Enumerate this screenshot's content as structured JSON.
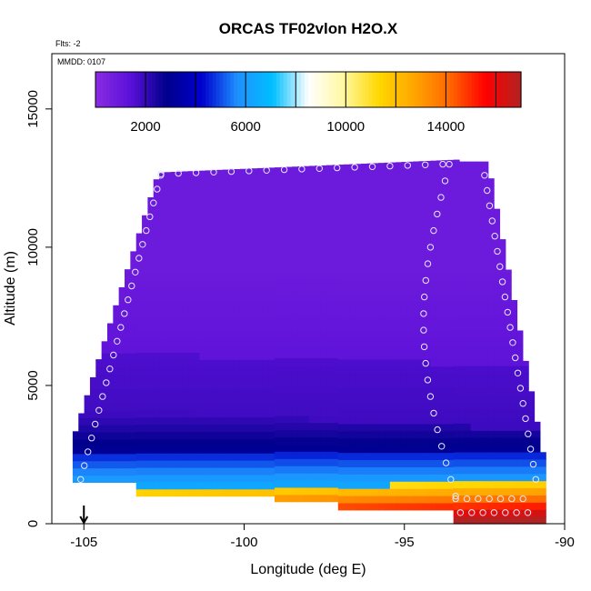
{
  "chart_data": {
    "type": "heatmap",
    "title": "ORCAS TF02vlon H2O.X",
    "subtitle": "Flts: -2",
    "annotation": "MMDD: 0107",
    "xlabel": "Longitude (deg E)",
    "ylabel": "Altitude (m)",
    "xlim": [
      -106,
      -90
    ],
    "ylim": [
      0,
      17000
    ],
    "x_ticks": [
      -105,
      -100,
      -95,
      -90
    ],
    "x_tick_labels": [
      "-105",
      "-100",
      "-95",
      "-90"
    ],
    "y_ticks": [
      0,
      5000,
      10000,
      15000
    ],
    "y_tick_labels": [
      "0",
      "5000",
      "10000",
      "15000"
    ],
    "colorbar": {
      "range": [
        0,
        17000
      ],
      "ticks": [
        2000,
        6000,
        10000,
        14000
      ],
      "tick_labels": [
        "2000",
        "6000",
        "10000",
        "14000"
      ],
      "colors": [
        "#8a2be2",
        "#5a10d8",
        "#00008b",
        "#0000cd",
        "#1e90ff",
        "#00bfff",
        "#ffffff",
        "#fff8a0",
        "#ffd700",
        "#ffa500",
        "#ff6600",
        "#ff0000",
        "#b22222"
      ]
    },
    "arrow_marker": {
      "x": -105
    }
  }
}
